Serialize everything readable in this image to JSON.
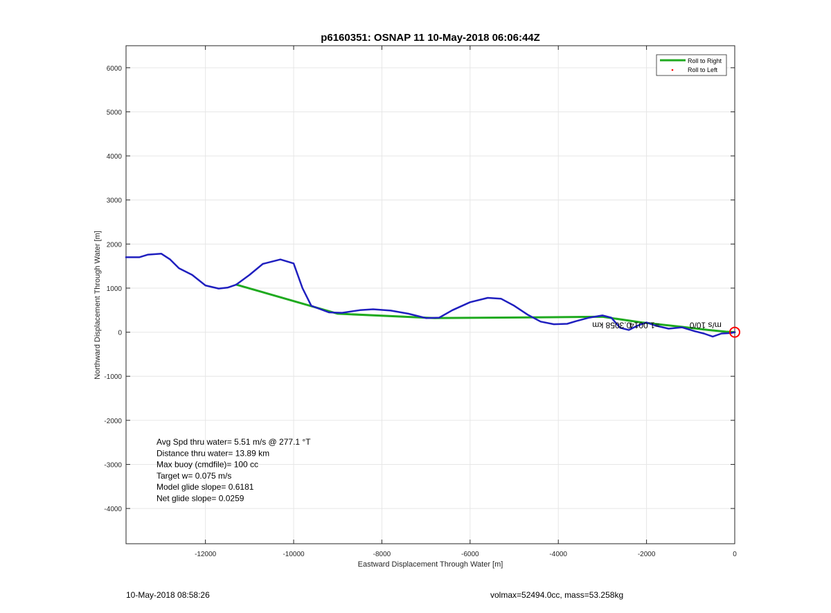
{
  "chart_data": {
    "type": "line",
    "title": "p6160351: OSNAP 11 10-May-2018 06:06:44Z",
    "xlabel": "Eastward Displacement Through Water [m]",
    "ylabel": "Northward Displacement Through Water [m]",
    "xlim": [
      -13800,
      0
    ],
    "ylim": [
      -4800,
      6500
    ],
    "xticks": [
      -12000,
      -10000,
      -8000,
      -6000,
      -4000,
      -2000,
      0
    ],
    "yticks": [
      -4000,
      -3000,
      -2000,
      -1000,
      0,
      1000,
      2000,
      3000,
      4000,
      5000,
      6000
    ],
    "grid": true,
    "legend_position": "top-right",
    "legend": [
      {
        "label": "Roll to Right",
        "color": "#1faa1f",
        "marker": "line"
      },
      {
        "label": "Roll to Left",
        "color": "#ff0000",
        "marker": "dot"
      }
    ],
    "series": [
      {
        "name": "Roll to Right",
        "color": "#1faa1f",
        "x": [
          -11300,
          -9000,
          -6800,
          -4200,
          -3000,
          -2100,
          -1200,
          -600,
          -200,
          0
        ],
        "y": [
          1080,
          420,
          320,
          340,
          350,
          220,
          120,
          50,
          10,
          0
        ]
      },
      {
        "color": "#1f1fbf",
        "x": [
          -13800,
          -13500,
          -13300,
          -13000,
          -12800,
          -12600,
          -12300,
          -12000,
          -11700,
          -11500,
          -11300,
          -11000,
          -10700,
          -10300,
          -10000,
          -9800,
          -9600,
          -9200,
          -8900,
          -8500,
          -8200,
          -7800,
          -7400,
          -7000,
          -6700,
          -6400,
          -6000,
          -5600,
          -5300,
          -5000,
          -4700,
          -4400,
          -4100,
          -3800,
          -3600,
          -3300,
          -3000,
          -2800,
          -2600,
          -2400,
          -2200,
          -2000,
          -1800,
          -1500,
          -1200,
          -900,
          -700,
          -500,
          -300,
          -100,
          0
        ],
        "y": [
          1700,
          1700,
          1760,
          1780,
          1650,
          1450,
          1300,
          1060,
          990,
          1010,
          1080,
          1300,
          1550,
          1650,
          1560,
          1000,
          600,
          450,
          440,
          500,
          520,
          490,
          420,
          320,
          330,
          500,
          680,
          780,
          760,
          600,
          400,
          240,
          180,
          190,
          250,
          330,
          380,
          330,
          100,
          50,
          150,
          220,
          150,
          80,
          110,
          20,
          -30,
          -100,
          -30,
          -20,
          0
        ]
      }
    ],
    "marker": {
      "x": 0,
      "y": 0,
      "color": "#ff0000",
      "shape": "circle"
    },
    "annotations": [
      "Avg Spd thru water=  5.51 m/s @ 277.1 °T",
      "Distance thru water= 13.89 km",
      "Max buoy (cmdfile)= 100 cc",
      "Target w= 0.075 m/s",
      "Model glide slope= 0.6181",
      "Net glide slope= 0.0259"
    ],
    "overlap_text": "0.3058 km",
    "overlap_text2": "=1.0014",
    "overlap_text3": "m/s 10/0"
  },
  "footer": {
    "timestamp": "10-May-2018 08:58:26",
    "mass_info": "volmax=52494.0cc, mass=53.258kg"
  }
}
